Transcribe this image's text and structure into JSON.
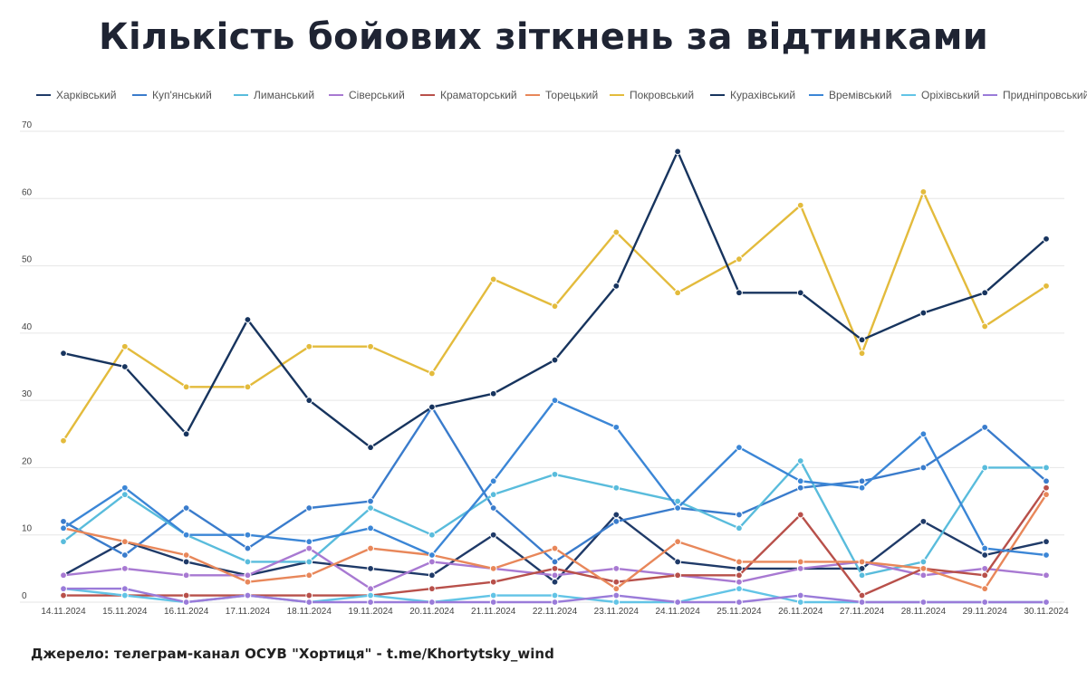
{
  "chart_data": {
    "type": "line",
    "title": "Кількість бойових зіткнень за відтинками",
    "xlabel": "",
    "ylabel": "",
    "ylim": [
      0,
      70
    ],
    "yticks": [
      0,
      10,
      20,
      30,
      40,
      50,
      60,
      70
    ],
    "grid": true,
    "legend_position": "top",
    "categories": [
      "14.11.2024",
      "15.11.2024",
      "16.11.2024",
      "17.11.2024",
      "18.11.2024",
      "19.11.2024",
      "20.11.2024",
      "21.11.2024",
      "22.11.2024",
      "23.11.2024",
      "24.11.2024",
      "25.11.2024",
      "26.11.2024",
      "27.11.2024",
      "28.11.2024",
      "29.11.2024",
      "30.11.2024"
    ],
    "series": [
      {
        "name": "Харківський",
        "color": "#1f3a68",
        "values": [
          4,
          9,
          6,
          4,
          6,
          5,
          4,
          10,
          3,
          13,
          6,
          5,
          5,
          5,
          12,
          7,
          9
        ]
      },
      {
        "name": "Куп'янський",
        "color": "#3a7ccc",
        "values": [
          12,
          7,
          14,
          8,
          14,
          15,
          29,
          14,
          6,
          12,
          14,
          13,
          17,
          18,
          20,
          26,
          18
        ]
      },
      {
        "name": "Лиманський",
        "color": "#59bcdc",
        "values": [
          9,
          16,
          10,
          6,
          6,
          14,
          10,
          16,
          19,
          17,
          15,
          11,
          21,
          4,
          6,
          20,
          20
        ]
      },
      {
        "name": "Сіверський",
        "color": "#a879d2",
        "values": [
          4,
          5,
          4,
          4,
          8,
          2,
          6,
          5,
          4,
          5,
          4,
          3,
          5,
          6,
          4,
          5,
          4
        ]
      },
      {
        "name": "Краматорський",
        "color": "#b8504a",
        "values": [
          1,
          1,
          1,
          1,
          1,
          1,
          2,
          3,
          5,
          3,
          4,
          4,
          13,
          1,
          5,
          4,
          17
        ]
      },
      {
        "name": "Торецький",
        "color": "#e8875a",
        "values": [
          11,
          9,
          7,
          3,
          4,
          8,
          7,
          5,
          8,
          2,
          9,
          6,
          6,
          6,
          5,
          2,
          16
        ]
      },
      {
        "name": "Покровський",
        "color": "#e3bb3c",
        "values": [
          24,
          38,
          32,
          32,
          38,
          38,
          34,
          48,
          44,
          55,
          46,
          51,
          59,
          37,
          61,
          41,
          47
        ]
      },
      {
        "name": "Курахівський",
        "color": "#17345e",
        "values": [
          37,
          35,
          25,
          42,
          30,
          23,
          29,
          31,
          36,
          47,
          67,
          46,
          46,
          39,
          43,
          46,
          54
        ]
      },
      {
        "name": "Времівський",
        "color": "#3b86d6",
        "values": [
          11,
          17,
          10,
          10,
          9,
          11,
          7,
          18,
          30,
          26,
          14,
          23,
          18,
          17,
          25,
          8,
          7
        ]
      },
      {
        "name": "Оріхівський",
        "color": "#62c4e6",
        "values": [
          2,
          1,
          0,
          1,
          0,
          1,
          0,
          1,
          1,
          0,
          0,
          2,
          0,
          0,
          0,
          0,
          0
        ]
      },
      {
        "name": "Придніпровський",
        "color": "#9a7bd9",
        "values": [
          2,
          2,
          0,
          1,
          0,
          0,
          0,
          0,
          0,
          1,
          0,
          0,
          1,
          0,
          0,
          0,
          0
        ]
      }
    ]
  },
  "source_text": "Джерело: телеграм-канал ОСУВ \"Хортиця\" - t.me/Khortytsky_wind"
}
